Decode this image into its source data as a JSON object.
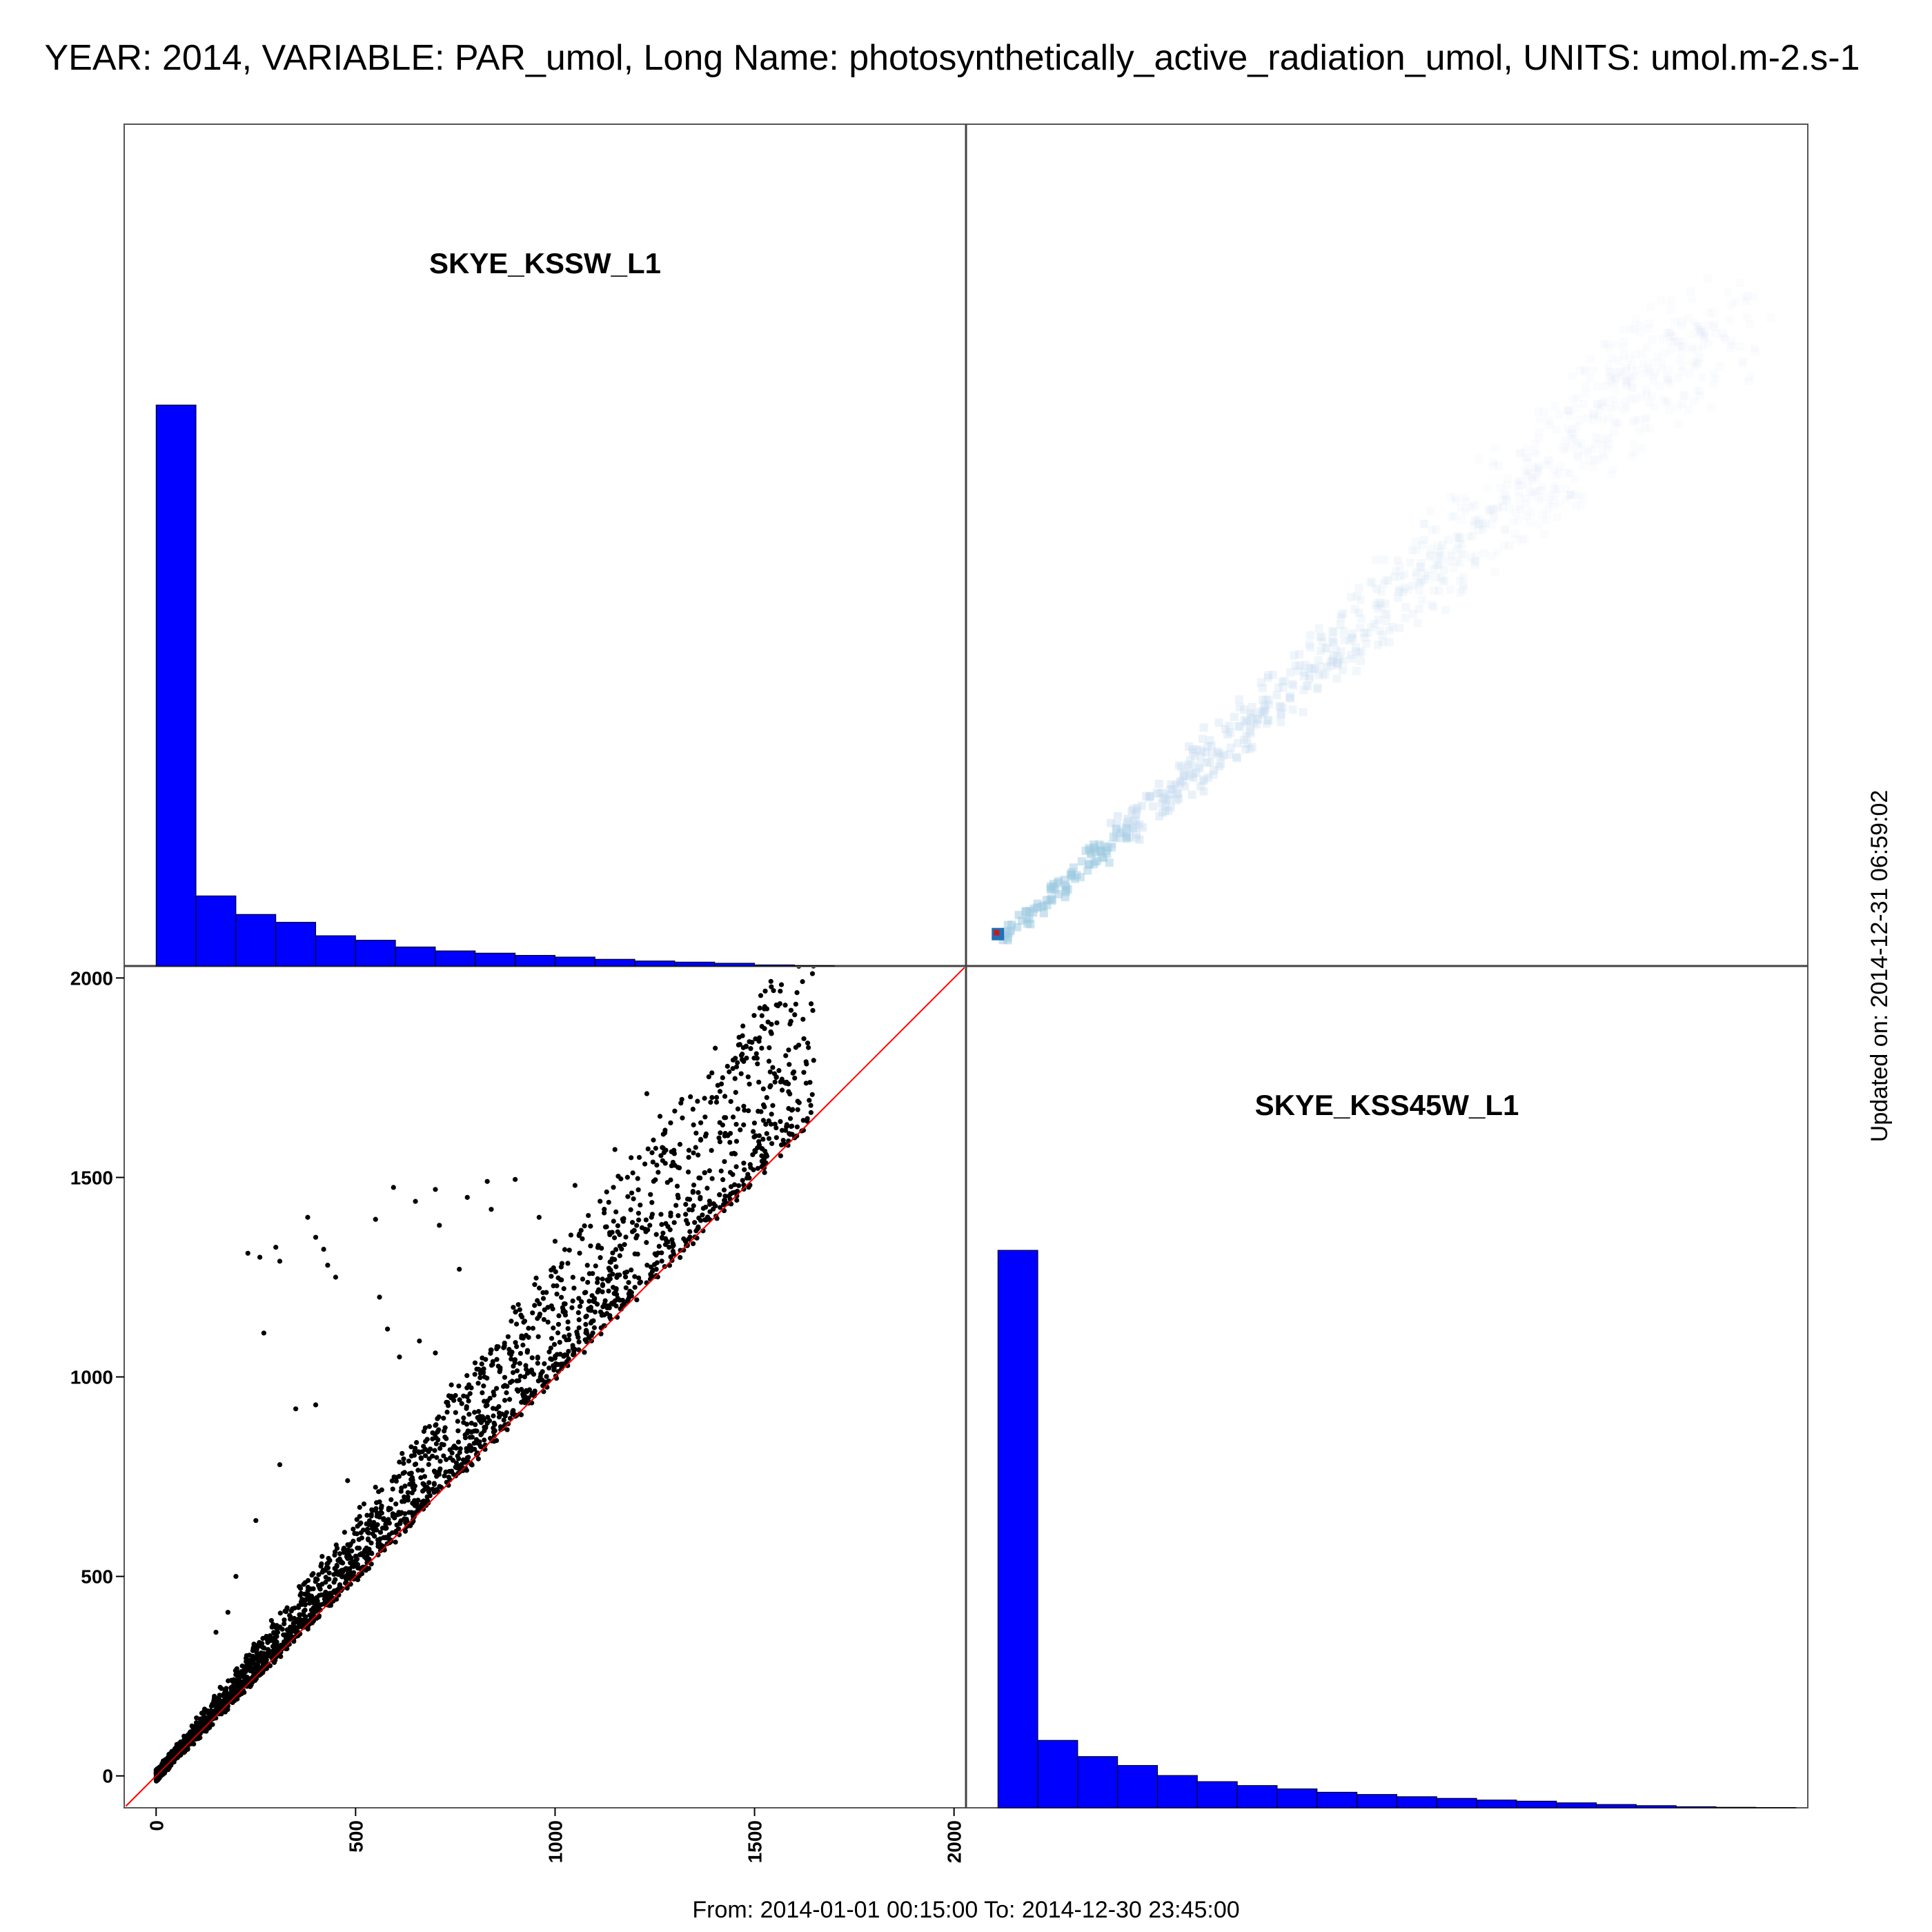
{
  "figure": {
    "title": "YEAR: 2014, VARIABLE: PAR_umol, Long Name: photosynthetically_active_radiation_umol, UNITS: umol.m-2.s-1",
    "footer": "From: 2014-01-01 00:15:00 To: 2014-12-30 23:45:00",
    "updated": "Updated on: 2014-12-31 06:59:02",
    "colors": {
      "hist": "#0000ff",
      "scatter": "#000000",
      "identity_line": "#ff0000",
      "density_low": "#deebf7",
      "density_high": "#2171b5",
      "density_peak": "#cb181d"
    }
  },
  "chart_data": [
    {
      "type": "histogram",
      "panel": "top-left",
      "label": "SKYE_KSSW_L1",
      "bin_width": 100,
      "bin_starts": [
        0,
        100,
        200,
        300,
        400,
        500,
        600,
        700,
        800,
        900,
        1000,
        1100,
        1200,
        1300,
        1400,
        1500,
        1600
      ],
      "values": [
        100,
        12.5,
        9.2,
        7.8,
        5.4,
        4.6,
        3.4,
        2.7,
        2.3,
        1.9,
        1.6,
        1.2,
        0.9,
        0.7,
        0.5,
        0.2,
        0.05
      ]
    },
    {
      "type": "histogram",
      "panel": "bottom-right",
      "label": "SKYE_KSS45W_L1",
      "bin_width": 100,
      "bin_starts": [
        0,
        100,
        200,
        300,
        400,
        500,
        600,
        700,
        800,
        900,
        1000,
        1100,
        1200,
        1300,
        1400,
        1500,
        1600,
        1700,
        1800,
        1900
      ],
      "values": [
        100,
        12.1,
        9.2,
        7.6,
        5.8,
        4.7,
        4.0,
        3.4,
        2.8,
        2.4,
        2.0,
        1.7,
        1.4,
        1.2,
        0.9,
        0.6,
        0.4,
        0.2,
        0.1,
        0.05
      ]
    },
    {
      "type": "scatter",
      "panel": "bottom-left",
      "x_variable": "SKYE_KSSW_L1",
      "y_variable": "SKYE_KSS45W_L1",
      "xlim": [
        -80,
        2030
      ],
      "ylim": [
        -80,
        2030
      ],
      "xticks": [
        0,
        500,
        1000,
        1500,
        2000
      ],
      "yticks": [
        0,
        500,
        1000,
        1500,
        2000
      ],
      "identity_line": true,
      "main_band": {
        "x_range": [
          0,
          1650
        ],
        "y_over_x_low": 1.0,
        "y_over_x_high": 1.3
      },
      "outliers": [
        [
          230,
          1310
        ],
        [
          260,
          1300
        ],
        [
          300,
          1325
        ],
        [
          310,
          1290
        ],
        [
          380,
          1400
        ],
        [
          400,
          1350
        ],
        [
          420,
          1320
        ],
        [
          430,
          1280
        ],
        [
          450,
          1250
        ],
        [
          550,
          1395
        ],
        [
          595,
          1475
        ],
        [
          650,
          1440
        ],
        [
          700,
          1470
        ],
        [
          710,
          1380
        ],
        [
          760,
          1270
        ],
        [
          780,
          1450
        ],
        [
          830,
          1490
        ],
        [
          840,
          1420
        ],
        [
          900,
          1495
        ],
        [
          960,
          1400
        ],
        [
          1000,
          1340
        ],
        [
          1050,
          1480
        ],
        [
          1150,
          1570
        ],
        [
          1230,
          1710
        ],
        [
          1420,
          1750
        ],
        [
          1550,
          1760
        ],
        [
          270,
          1110
        ],
        [
          560,
          1200
        ],
        [
          580,
          1120
        ],
        [
          610,
          1050
        ],
        [
          660,
          1090
        ],
        [
          700,
          1060
        ],
        [
          740,
          980
        ],
        [
          200,
          500
        ],
        [
          250,
          640
        ],
        [
          310,
          780
        ],
        [
          350,
          920
        ],
        [
          400,
          930
        ],
        [
          150,
          360
        ],
        [
          180,
          410
        ],
        [
          480,
          740
        ]
      ]
    },
    {
      "type": "heatmap",
      "panel": "top-right",
      "x_variable": "SKYE_KSS45W_L1",
      "y_variable": "SKYE_KSSW_L1",
      "description_density": "2D density of the same pairs, concentrated along y ≈ 0.85·x with a peak at the origin",
      "x_range": [
        0,
        1800
      ],
      "y_range": [
        0,
        1650
      ]
    }
  ]
}
